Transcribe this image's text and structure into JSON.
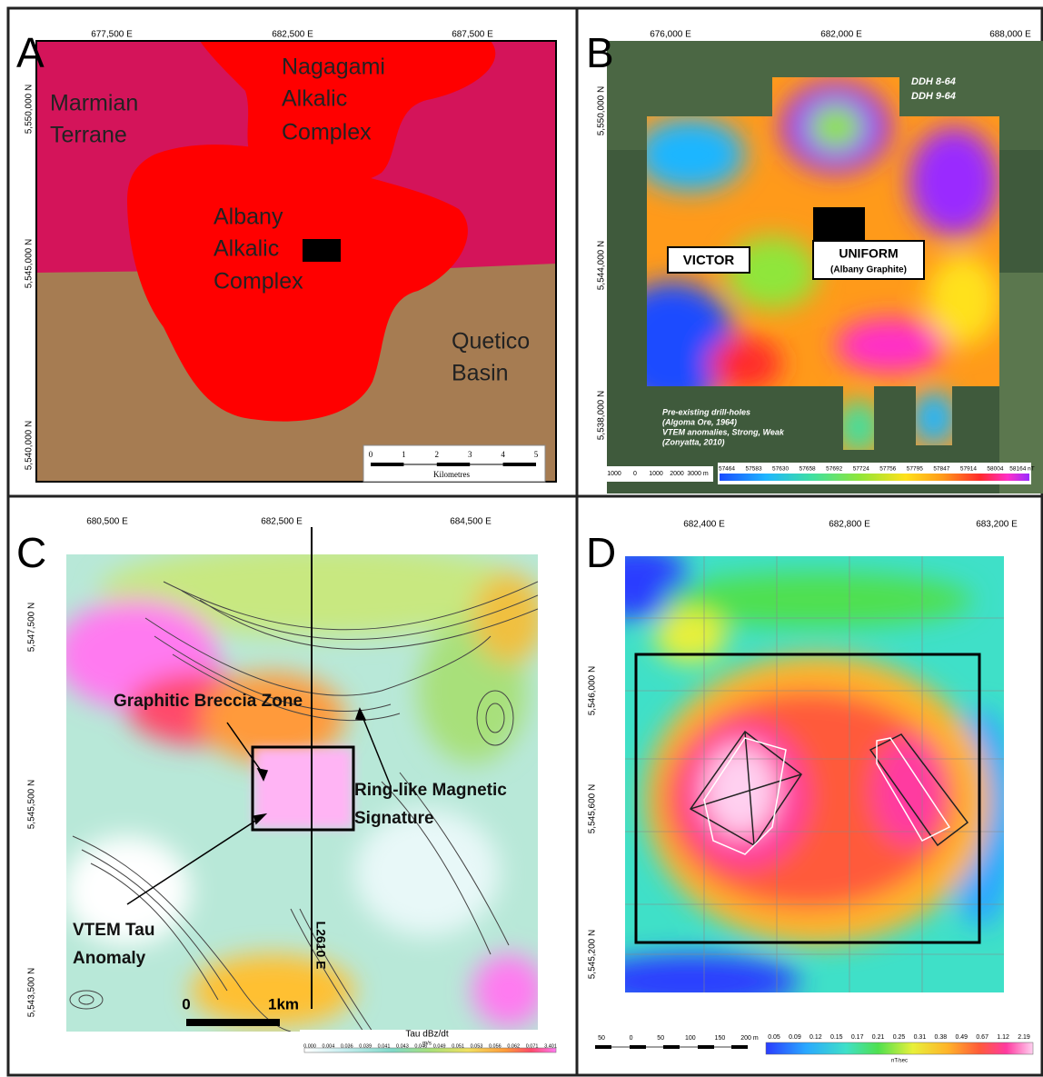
{
  "panels": [
    {
      "letter": "A",
      "x_ticks": [
        "677,500 E",
        "682,500 E",
        "687,500 E"
      ],
      "y_ticks": [
        "5,550,000 N",
        "5,545,000 N",
        "5,540,000 N"
      ],
      "labels": [
        [
          "Marmian",
          "Terrane"
        ],
        [
          "Nagagami",
          "Alkalic",
          "Complex"
        ],
        [
          "Albany",
          "Alkalic",
          "Complex"
        ],
        [
          "Quetico",
          "Basin"
        ]
      ],
      "scale": {
        "ticks": [
          "0",
          "1",
          "2",
          "3",
          "4",
          "5"
        ],
        "unit": "Kilometres"
      }
    },
    {
      "letter": "B",
      "x_ticks": [
        "676,000 E",
        "682,000 E",
        "688,000 E"
      ],
      "y_ticks": [
        "5,550,000 N",
        "5,544,000 N",
        "5,538,000 N"
      ],
      "drill_holes": [
        "DDH 8-64",
        "DDH 9-64"
      ],
      "targets": [
        {
          "name": "VICTOR"
        },
        {
          "name": "UNIFORM",
          "note": "(Albany Graphite)"
        }
      ],
      "legend": [
        "Pre-existing drill-holes",
        "(Algoma Ore, 1964)",
        "VTEM anomalies, Strong, Weak",
        "(Zonyatta, 2010)"
      ],
      "scale": {
        "ticks": [
          "1000",
          "0",
          "1000",
          "2000",
          "3000 m"
        ]
      },
      "colorbar": {
        "labels": [
          "57464",
          "57583",
          "57630",
          "57658",
          "57692",
          "57724",
          "57756",
          "57795",
          "57847",
          "57914",
          "58004",
          "58164 nT"
        ]
      }
    },
    {
      "letter": "C",
      "x_ticks": [
        "680,500 E",
        "682,500 E",
        "684,500 E"
      ],
      "y_ticks": [
        "5,547,500 N",
        "5,545,500 N",
        "5,543,500 N"
      ],
      "annotations": [
        [
          "Graphitic Breccia Zone"
        ],
        [
          "Ring-like Magnetic",
          "Signature"
        ],
        [
          "VTEM Tau",
          "Anomaly"
        ]
      ],
      "line_label": "L2610 E",
      "scale": {
        "ticks": [
          "0",
          "1km"
        ]
      },
      "colorbar": {
        "title": "Tau dBz/dt",
        "unit": "m/s",
        "labels": [
          "0.000",
          "0.004",
          "0.036",
          "0.039",
          "0.041",
          "0.043",
          "0.046",
          "0.049",
          "0.051",
          "0.053",
          "0.056",
          "0.062",
          "0.071",
          "3.401"
        ]
      }
    },
    {
      "letter": "D",
      "x_ticks": [
        "682,400 E",
        "682,800 E",
        "683,200 E"
      ],
      "y_ticks": [
        "5,546,000 N",
        "5,545,600 N",
        "5,545,200 N"
      ],
      "scale": {
        "ticks": [
          "50",
          "0",
          "50",
          "100",
          "150",
          "200 m"
        ]
      },
      "colorbar": {
        "unit": "nT/sec",
        "labels": [
          "0.05",
          "0.09",
          "0.12",
          "0.15",
          "0.17",
          "0.21",
          "0.25",
          "0.31",
          "0.38",
          "0.49",
          "0.67",
          "1.12",
          "2.19"
        ]
      }
    }
  ]
}
